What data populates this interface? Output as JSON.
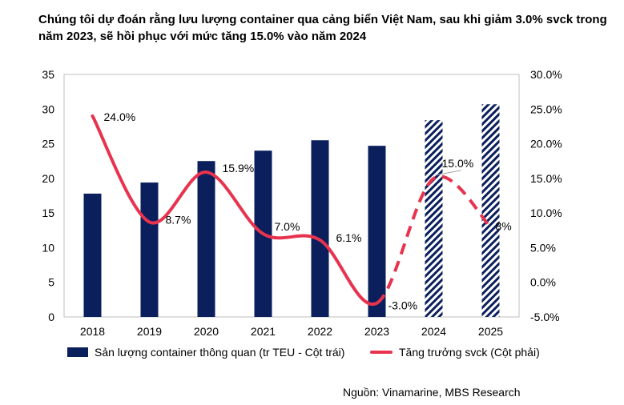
{
  "title": "Chúng tôi dự đoán rằng lưu lượng container qua cảng biển Việt Nam, sau khi giảm 3.0% svck trong năm 2023, sẽ hồi phục với mức tăng 15.0% vào năm 2024",
  "source": "Nguồn: Vinamarine, MBS Research",
  "colors": {
    "bar": "#0a1f5c",
    "line": "#e8334f",
    "forecast_hatch": "#0a1f5c"
  },
  "chart_data": {
    "type": "bar",
    "categories": [
      "2018",
      "2019",
      "2020",
      "2021",
      "2022",
      "2023",
      "2024",
      "2025"
    ],
    "y_left": {
      "ticks": [
        "0",
        "5",
        "10",
        "15",
        "20",
        "25",
        "30",
        "35"
      ],
      "ylim": [
        0,
        35
      ]
    },
    "y_right": {
      "ticks": [
        "-5.0%",
        "0.0%",
        "5.0%",
        "10.0%",
        "15.0%",
        "20.0%",
        "25.0%",
        "30.0%"
      ],
      "ylim": [
        -5,
        30
      ]
    },
    "series": [
      {
        "name": "Sản lượng container thông quan (tr TEU - Cột trái)",
        "type": "bar",
        "axis": "left",
        "values": [
          17.8,
          19.4,
          22.5,
          24.0,
          25.5,
          24.7,
          28.4,
          30.7
        ],
        "forecast": [
          false,
          false,
          false,
          false,
          false,
          false,
          true,
          true
        ]
      },
      {
        "name": "Tăng trưởng svck (Cột phải)",
        "type": "line",
        "axis": "right",
        "values": [
          24.0,
          8.7,
          15.9,
          7.0,
          6.1,
          -3.0,
          15.0,
          8.0
        ],
        "labels": [
          "24.0%",
          "8.7%",
          "15.9%",
          "7.0%",
          "6.1%",
          "-3.0%",
          "15.0%",
          "8%"
        ],
        "dashed_from_index": 5
      }
    ]
  }
}
